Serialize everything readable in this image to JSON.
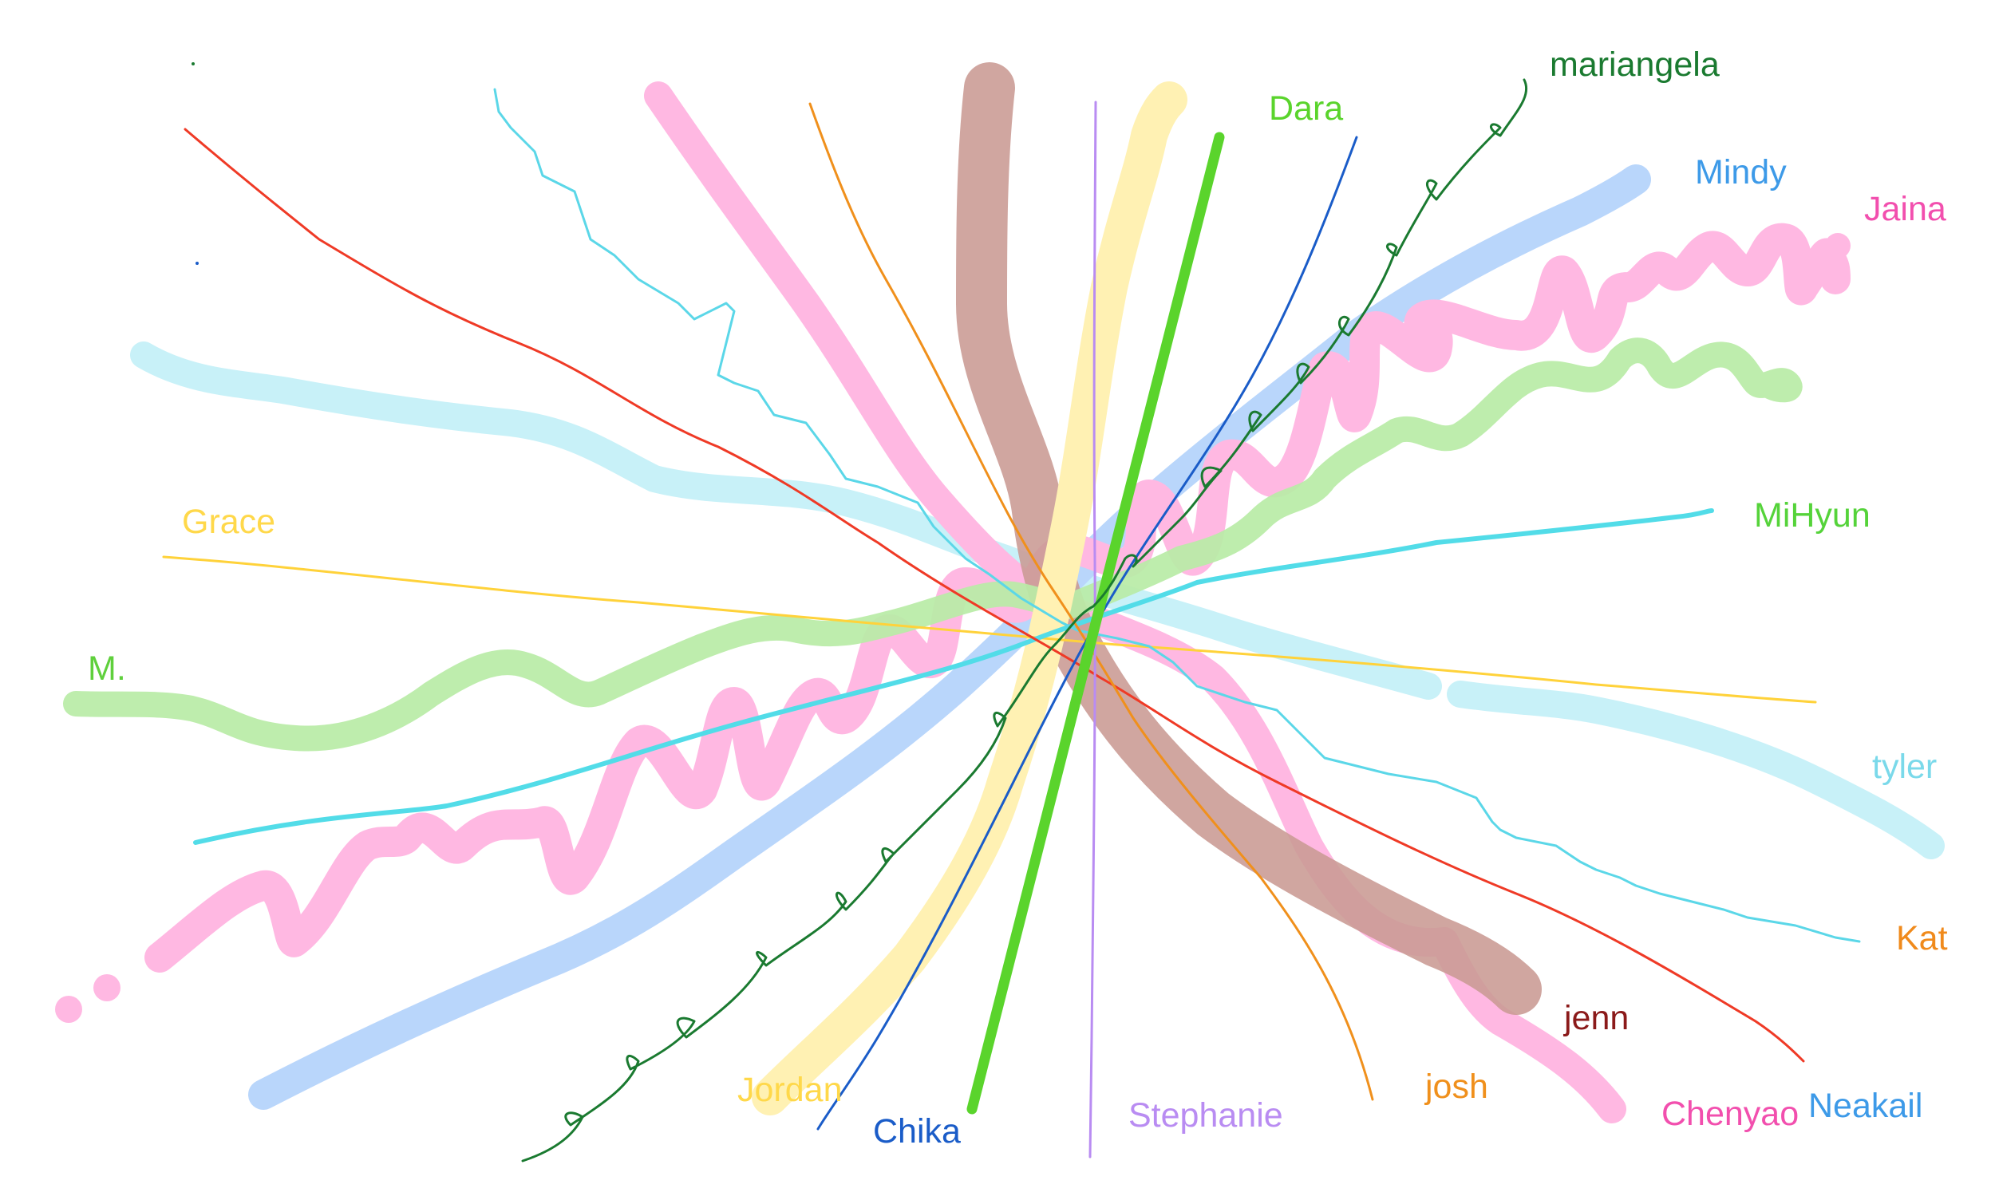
{
  "canvas": {
    "background": "#ffffff"
  },
  "strokes": [
    {
      "id": "grace",
      "label": "Grace",
      "color": "#ffd23a",
      "label_color": "#ffd84a"
    },
    {
      "id": "m",
      "label": "M.",
      "color": "#b9eba6",
      "label_color": "#5fd03c"
    },
    {
      "id": "mihyun",
      "label": "MiHyun",
      "color": "#52dce8",
      "label_color": "#55d33a"
    },
    {
      "id": "jaina",
      "label": "Jaina",
      "color": "#ffb8e2",
      "label_color": "#f24fae"
    },
    {
      "id": "mindy",
      "label": "Mindy",
      "color": "#b9d6fb",
      "label_color": "#3d9ae8"
    },
    {
      "id": "tyler",
      "label": "tyler",
      "color": "#c8f1f8",
      "label_color": "#7ad9ea"
    },
    {
      "id": "kat",
      "label": "Kat",
      "color": "#ef3a26",
      "label_color": "#f08a1c"
    },
    {
      "id": "jenn",
      "label": "jenn",
      "color": "#c99a93",
      "label_color": "#8b1a1a"
    },
    {
      "id": "josh",
      "label": "josh",
      "color": "#f0901c",
      "label_color": "#f0901c"
    },
    {
      "id": "chenyao",
      "label": "Chenyao",
      "color": "#ffb8e2",
      "label_color": "#f24fae"
    },
    {
      "id": "neakail",
      "label": "Neakail",
      "color": "#5bd7e8",
      "label_color": "#3d9ae8"
    },
    {
      "id": "stephanie",
      "label": "Stephanie",
      "color": "#b98cf2",
      "label_color": "#b98cf2"
    },
    {
      "id": "chika",
      "label": "Chika",
      "color": "#1a5cc8",
      "label_color": "#1a5cc8"
    },
    {
      "id": "jordan",
      "label": "Jordan",
      "color": "#fff1b3",
      "label_color": "#ffd84a"
    },
    {
      "id": "dara",
      "label": "Dara",
      "color": "#5ad42c",
      "label_color": "#5ad42c"
    },
    {
      "id": "mariangela",
      "label": "mariangela",
      "color": "#1a7a30",
      "label_color": "#1a7a30"
    }
  ]
}
